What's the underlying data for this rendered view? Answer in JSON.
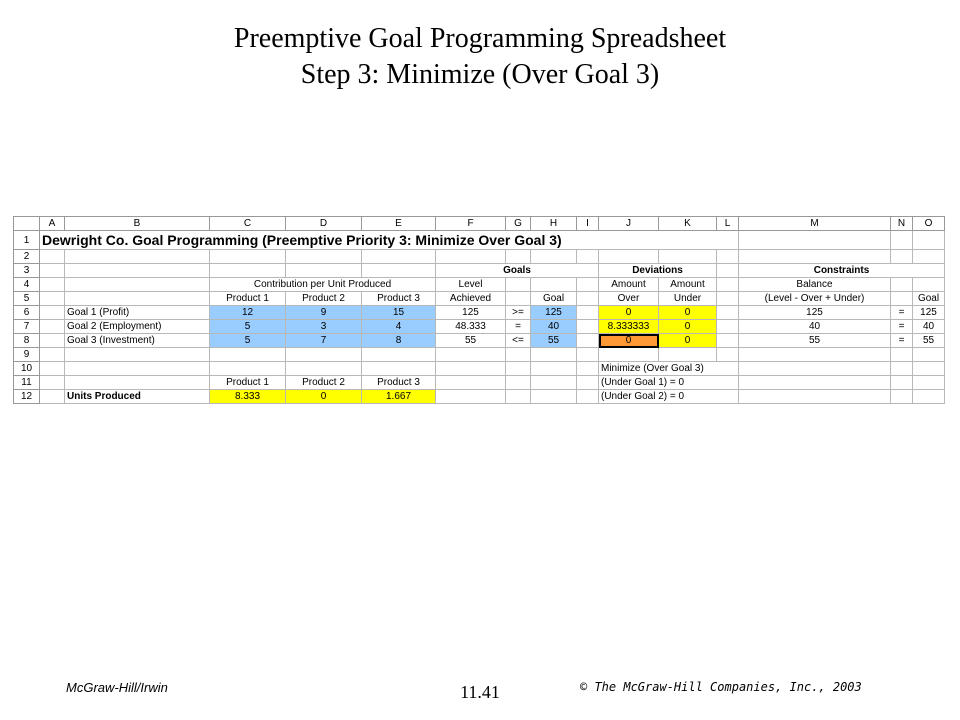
{
  "slide": {
    "title_line1": "Preemptive Goal Programming Spreadsheet",
    "title_line2": "Step 3: Minimize (Over Goal 3)",
    "footer_left": "McGraw-Hill/Irwin",
    "page_number": "11.41",
    "footer_right": "© The McGraw-Hill Companies, Inc., 2003"
  },
  "sheet": {
    "columns": [
      "A",
      "B",
      "C",
      "D",
      "E",
      "F",
      "G",
      "H",
      "I",
      "J",
      "K",
      "L",
      "M",
      "N",
      "O"
    ],
    "rows": [
      "1",
      "2",
      "3",
      "4",
      "5",
      "6",
      "7",
      "8",
      "9",
      "10",
      "11",
      "12"
    ],
    "r1_title": "Dewright Co. Goal Programming (Preemptive Priority 3: Minimize Over Goal 3)",
    "r3": {
      "goals": "Goals",
      "deviations": "Deviations",
      "constraints": "Constraints"
    },
    "r4": {
      "contribution": "Contribution per Unit Produced",
      "level": "Level",
      "amount1": "Amount",
      "amount2": "Amount",
      "balance": "Balance"
    },
    "r5": {
      "p1": "Product 1",
      "p2": "Product 2",
      "p3": "Product 3",
      "achieved": "Achieved",
      "goal": "Goal",
      "over": "Over",
      "under": "Under",
      "formula": "(Level - Over + Under)",
      "goal2": "Goal"
    },
    "goal_rows": [
      {
        "label": "Goal 1 (Profit)",
        "c": "12",
        "d": "9",
        "e": "15",
        "level": "125",
        "op": ">=",
        "goal": "125",
        "over": "0",
        "under": "0",
        "balance": "125",
        "eq": "=",
        "target": "125"
      },
      {
        "label": "Goal 2 (Employment)",
        "c": "5",
        "d": "3",
        "e": "4",
        "level": "48.333",
        "op": "=",
        "goal": "40",
        "over": "8.333333",
        "under": "0",
        "balance": "40",
        "eq": "=",
        "target": "40"
      },
      {
        "label": "Goal 3 (Investment)",
        "c": "5",
        "d": "7",
        "e": "8",
        "level": "55",
        "op": "<=",
        "goal": "55",
        "over": "0",
        "under": "0",
        "balance": "55",
        "eq": "=",
        "target": "55"
      }
    ],
    "r10": {
      "minimize": "Minimize (Over Goal 3)"
    },
    "r11": {
      "p1": "Product 1",
      "p2": "Product 2",
      "p3": "Product 3",
      "constraint1": "(Under Goal 1) = 0"
    },
    "r12": {
      "units_label": "Units Produced",
      "u1": "8.333",
      "u2": "0",
      "u3": "1.667",
      "constraint2": "(Under Goal 2) = 0"
    }
  }
}
